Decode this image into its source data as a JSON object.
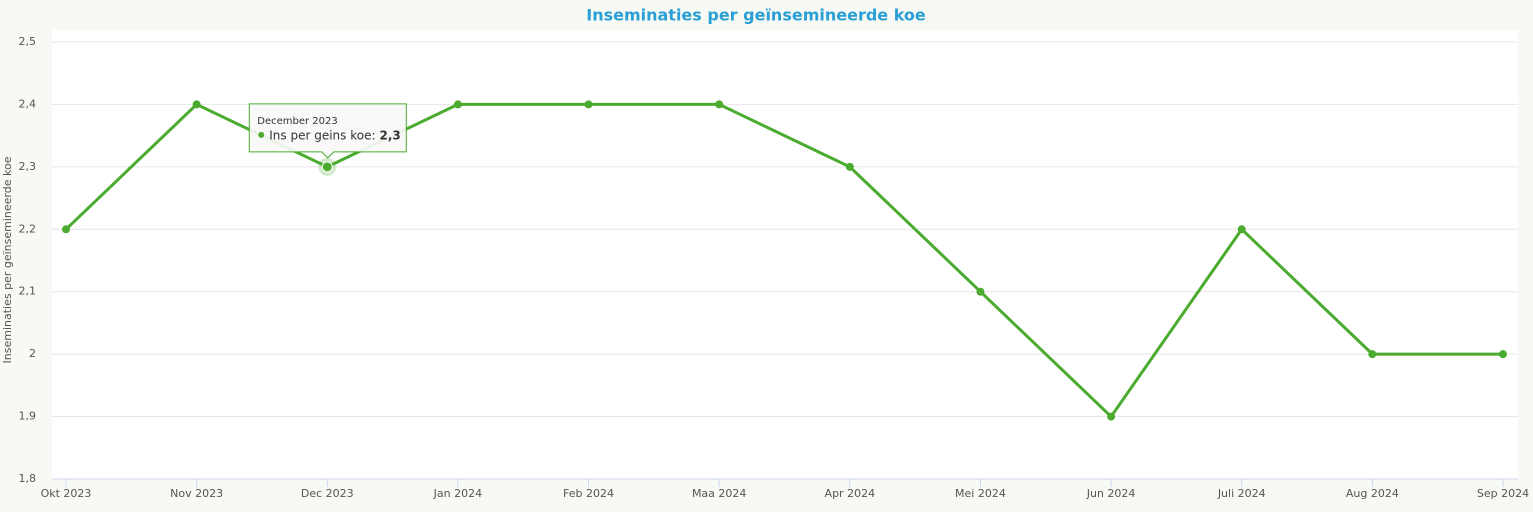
{
  "chart_data": {
    "type": "line",
    "title": "Inseminaties per geïnsemineerde koe",
    "y_label": "Inseminaties per geïnsemineerde koe",
    "categories": [
      "Okt 2023",
      "Nov 2023",
      "Dec 2023",
      "Jan 2024",
      "Feb 2024",
      "Maa 2024",
      "Apr 2024",
      "Mei 2024",
      "Jun 2024",
      "Juli 2024",
      "Aug 2024",
      "Sep 2024"
    ],
    "series": [
      {
        "name": "Ins per geins koe",
        "color": "#4aab2f",
        "values": [
          2.2,
          2.4,
          2.3,
          2.4,
          2.4,
          2.4,
          2.3,
          2.1,
          1.9,
          2.2,
          2.0,
          2.0
        ]
      }
    ],
    "ylim": [
      1.8,
      2.5
    ],
    "yticks": [
      {
        "value": 1.8,
        "label": "1,8"
      },
      {
        "value": 1.9,
        "label": "1,9"
      },
      2,
      {
        "value": 2.1,
        "label": "2,1"
      },
      {
        "value": 2.2,
        "label": "2,2"
      },
      {
        "value": 2.3,
        "label": "2,3"
      },
      {
        "value": 2.4,
        "label": "2,4"
      },
      {
        "value": 2.5,
        "label": "2,5"
      }
    ],
    "grid": true,
    "tooltip": {
      "title": "December 2023",
      "value": 2.3,
      "value_label": "2,3"
    }
  }
}
